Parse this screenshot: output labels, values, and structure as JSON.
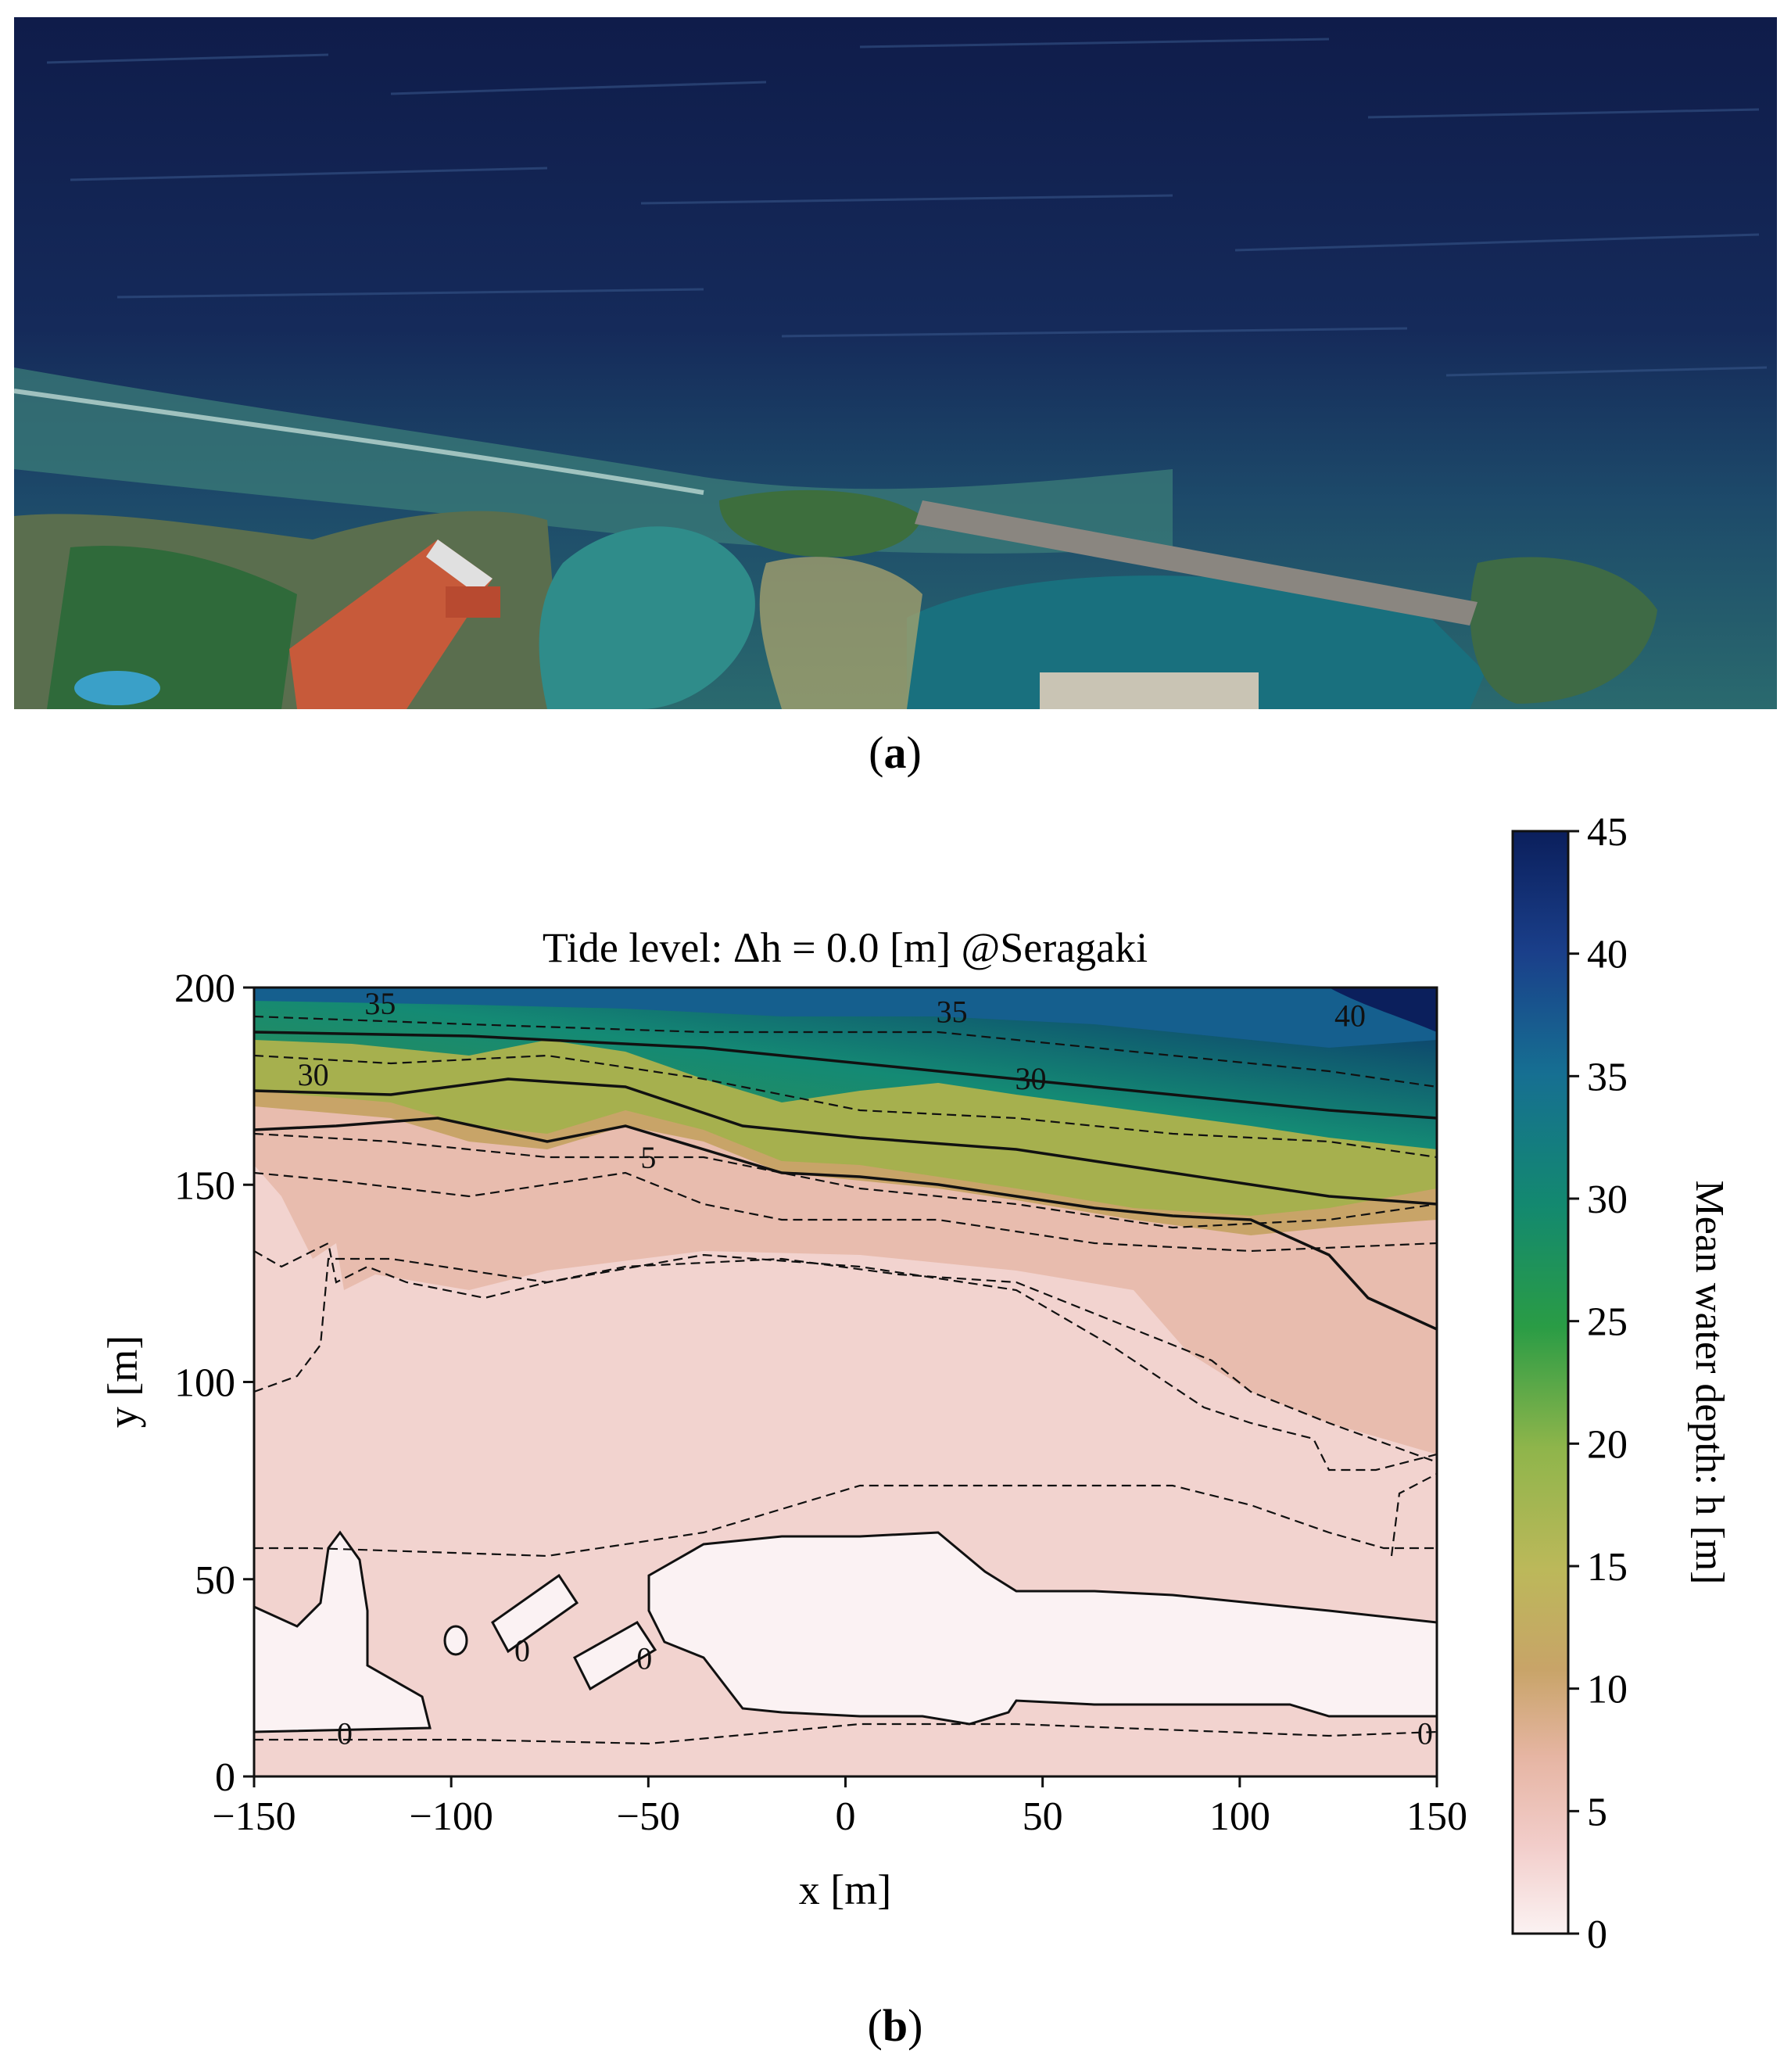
{
  "panels": {
    "a": {
      "label_open": "(",
      "label_letter": "a",
      "label_close": ")"
    },
    "b": {
      "label_open": "(",
      "label_letter": "b",
      "label_close": ")"
    }
  },
  "chart_data": {
    "type": "heatmap",
    "subtype": "filled-contour",
    "title": "Tide level: Δh = 0.0 [m] @Seragaki",
    "xlabel": "x [m]",
    "ylabel": "y [m]",
    "xlim": [
      -150,
      150
    ],
    "ylim": [
      0,
      200
    ],
    "xticks": [
      -150,
      -100,
      -50,
      0,
      50,
      100,
      150
    ],
    "xtick_labels": [
      "−150",
      "−100",
      "−50",
      "0",
      "50",
      "100",
      "150"
    ],
    "yticks": [
      0,
      50,
      100,
      150,
      200
    ],
    "ytick_labels": [
      "0",
      "50",
      "100",
      "150",
      "200"
    ],
    "colorbar": {
      "label": "Mean water depth: h [m]",
      "range": [
        0,
        45
      ],
      "ticks": [
        0,
        5,
        10,
        15,
        20,
        25,
        30,
        35,
        40,
        45
      ],
      "tick_labels": [
        "0",
        "5",
        "10",
        "15",
        "20",
        "25",
        "30",
        "35",
        "40",
        "45"
      ],
      "colors": [
        "#fbf2f2",
        "#f2cdca",
        "#e6b5a3",
        "#c8a468",
        "#bcb85a",
        "#8fb54b",
        "#2a9c45",
        "#13896f",
        "#166f92",
        "#1a3f8a",
        "#0b1f5c"
      ]
    },
    "contour_labels": [
      {
        "text": "35",
        "x": -118,
        "y": 196
      },
      {
        "text": "30",
        "x": -135,
        "y": 178
      },
      {
        "text": "5",
        "x": -50,
        "y": 157
      },
      {
        "text": "35",
        "x": 27,
        "y": 194
      },
      {
        "text": "30",
        "x": 47,
        "y": 177
      },
      {
        "text": "40",
        "x": 128,
        "y": 193
      },
      {
        "text": "0",
        "x": -127,
        "y": 11
      },
      {
        "text": "0",
        "x": -82,
        "y": 32
      },
      {
        "text": "0",
        "x": -51,
        "y": 30
      },
      {
        "text": "0",
        "x": 147,
        "y": 11
      }
    ]
  }
}
